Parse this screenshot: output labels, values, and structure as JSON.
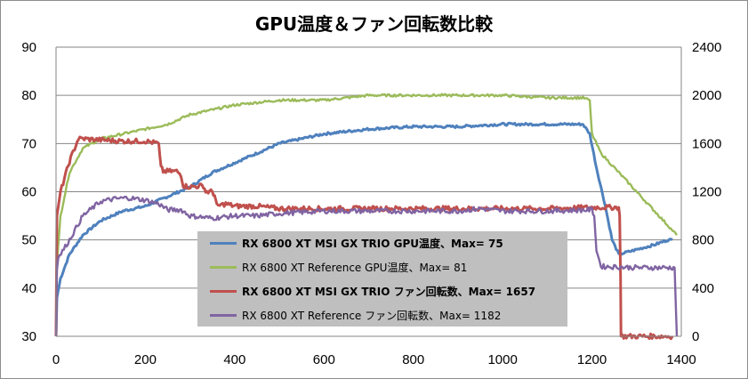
{
  "chart_data": {
    "type": "line",
    "title": "GPU温度＆ファン回転数比較",
    "xlim": [
      0,
      1400
    ],
    "x_ticks": [
      "0",
      "200",
      "400",
      "600",
      "800",
      "1000",
      "1200",
      "1400"
    ],
    "ylim_left": [
      30,
      90
    ],
    "y_left_ticks": [
      "30",
      "40",
      "50",
      "60",
      "70",
      "80",
      "90"
    ],
    "ylim_right": [
      0,
      2400
    ],
    "y_right_ticks": [
      "0",
      "400",
      "800",
      "1200",
      "1600",
      "2000",
      "2400"
    ],
    "grid": "horizontal",
    "legend": "inside-bottom-center",
    "series": [
      {
        "name": "RX 6800 XT MSI GX TRIO GPU温度、Max= 75",
        "axis": "left",
        "color": "#4f81bd",
        "bold": true,
        "x": [
          0,
          2,
          10,
          30,
          60,
          100,
          150,
          200,
          250,
          300,
          350,
          400,
          450,
          500,
          550,
          600,
          650,
          700,
          800,
          900,
          1000,
          1100,
          1180,
          1195,
          1210,
          1230,
          1245,
          1260,
          1300,
          1340,
          1370,
          1380
        ],
        "y": [
          30,
          38,
          42,
          47,
          51,
          54,
          56,
          57,
          59,
          61,
          64,
          66,
          68,
          70,
          71,
          72,
          72.5,
          73,
          73.5,
          73.5,
          74,
          74,
          74,
          72,
          65,
          57,
          50,
          47,
          48,
          49,
          50,
          50
        ]
      },
      {
        "name": "RX 6800 XT Reference GPU温度、Max= 81",
        "axis": "left",
        "color": "#9bbb59",
        "bold": false,
        "x": [
          0,
          2,
          10,
          30,
          60,
          100,
          150,
          200,
          250,
          300,
          350,
          400,
          450,
          500,
          550,
          600,
          700,
          800,
          900,
          1000,
          1100,
          1180,
          1195,
          1200,
          1220,
          1260,
          1300,
          1340,
          1380,
          1390
        ],
        "y": [
          30,
          45,
          55,
          64,
          69,
          71,
          72,
          73,
          74,
          76,
          77,
          78,
          78.5,
          79,
          79,
          79,
          80,
          80,
          80,
          80,
          79.5,
          79.5,
          79,
          72,
          68,
          64,
          60,
          56,
          52,
          51
        ]
      },
      {
        "name": "RX 6800 XT MSI GX TRIO ファン回転数、Max= 1657",
        "axis": "right",
        "color": "#c0504d",
        "bold": true,
        "x": [
          0,
          2,
          10,
          30,
          50,
          60,
          100,
          150,
          200,
          230,
          235,
          240,
          270,
          280,
          285,
          300,
          330,
          335,
          350,
          355,
          360,
          370,
          380,
          400,
          450,
          500,
          600,
          700,
          800,
          900,
          1000,
          1100,
          1200,
          1260,
          1262,
          1264,
          1265,
          1380
        ],
        "y": [
          0,
          1000,
          1200,
          1450,
          1640,
          1640,
          1630,
          1620,
          1620,
          1600,
          1400,
          1370,
          1370,
          1340,
          1250,
          1240,
          1250,
          1200,
          1200,
          1170,
          1080,
          1090,
          1100,
          1080,
          1080,
          1060,
          1060,
          1060,
          1060,
          1060,
          1060,
          1060,
          1070,
          1070,
          1000,
          500,
          0,
          0
        ]
      },
      {
        "name": "RX 6800 XT Reference ファン回転数、Max= 1182",
        "axis": "right",
        "color": "#8064a2",
        "bold": false,
        "x": [
          0,
          2,
          5,
          30,
          60,
          100,
          130,
          160,
          200,
          230,
          250,
          280,
          300,
          350,
          400,
          450,
          500,
          600,
          700,
          800,
          900,
          950,
          1000,
          1100,
          1200,
          1205,
          1210,
          1220,
          1300,
          1380,
          1385,
          1390
        ],
        "y": [
          0,
          550,
          650,
          800,
          1000,
          1120,
          1140,
          1150,
          1130,
          1100,
          1050,
          1050,
          1000,
          980,
          1000,
          1000,
          1020,
          1040,
          1040,
          1040,
          1040,
          1060,
          1040,
          1040,
          1050,
          1000,
          720,
          580,
          570,
          570,
          570,
          0
        ]
      }
    ]
  }
}
